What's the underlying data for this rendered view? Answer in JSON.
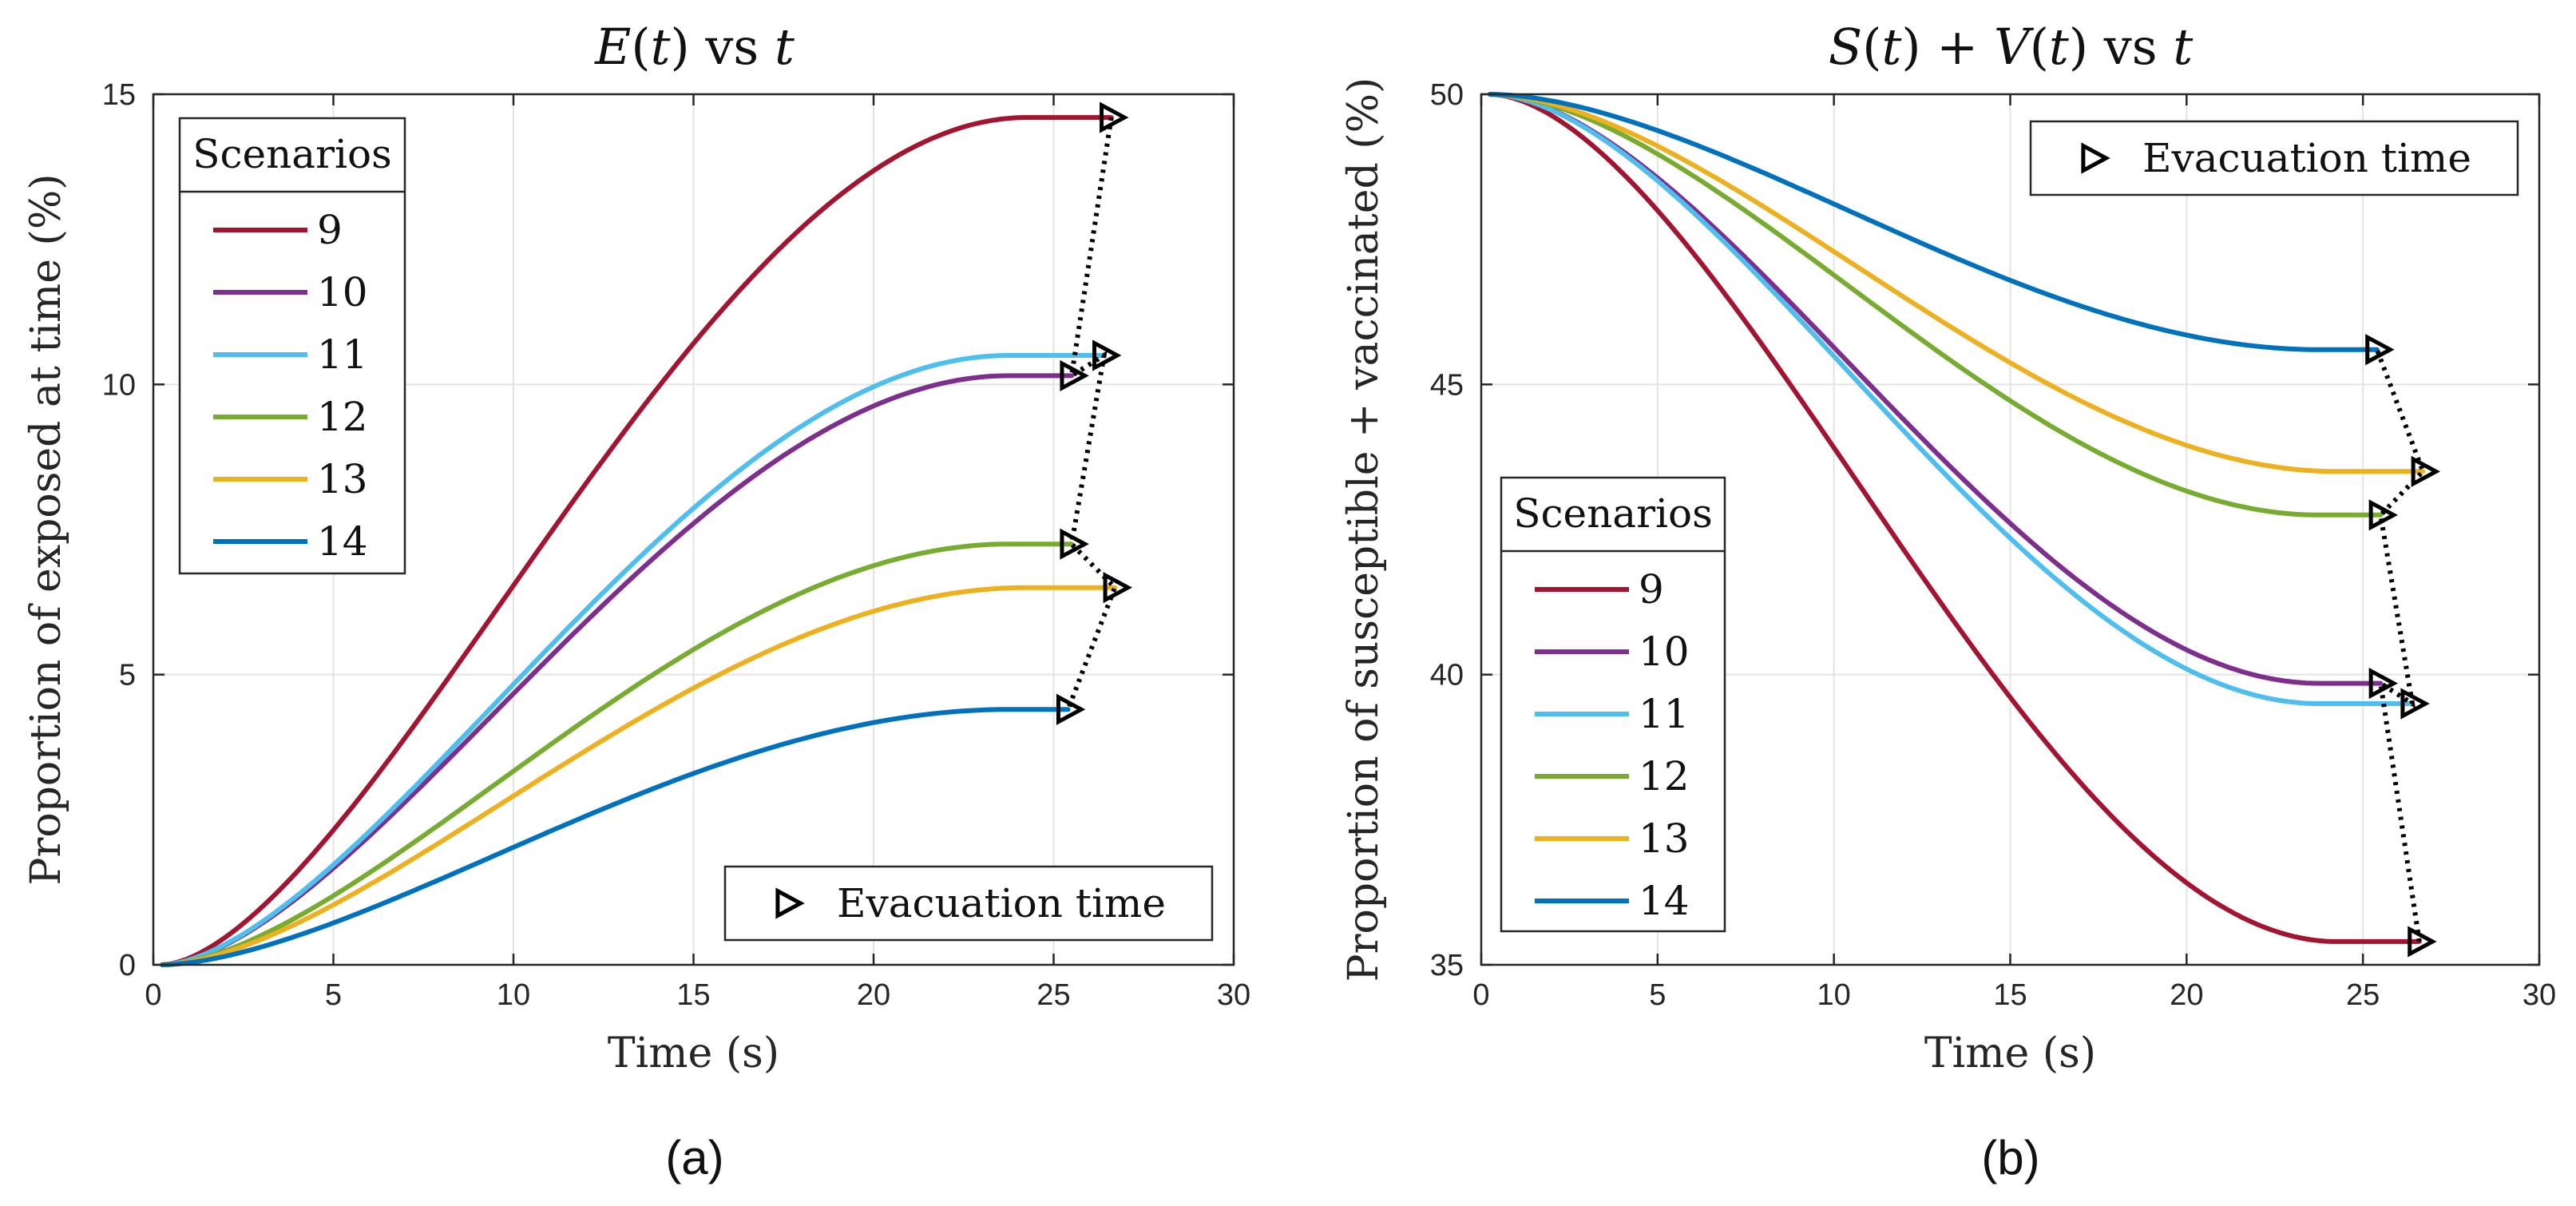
{
  "chart_data": [
    {
      "type": "line",
      "panel_label": "(a)",
      "title": "E(t) vs t",
      "title_parts": {
        "func": "E",
        "arg": "t",
        "vs": "vs",
        "var": "t"
      },
      "xlabel": "Time (s)",
      "ylabel": "Proportion of exposed at time (%)",
      "xlim": [
        0,
        30
      ],
      "ylim": [
        0,
        15
      ],
      "xticks": [
        0,
        5,
        10,
        15,
        20,
        25,
        30
      ],
      "yticks": [
        0,
        5,
        10,
        15
      ],
      "grid": true,
      "legend_title": "Scenarios",
      "legend_position": "top-left",
      "marker_legend": {
        "label": "Evacuation time",
        "position": "bottom-right"
      },
      "curve_shape": "rise",
      "series": [
        {
          "name": "9",
          "color": "#A2142F",
          "start": 0,
          "end": 14.6,
          "end_time": 26.6,
          "plateau_time": 24.0
        },
        {
          "name": "10",
          "color": "#7E2F8E",
          "start": 0,
          "end": 10.15,
          "end_time": 25.5,
          "plateau_time": 23.5
        },
        {
          "name": "11",
          "color": "#4DBEEE",
          "start": 0,
          "end": 10.5,
          "end_time": 26.4,
          "plateau_time": 23.5
        },
        {
          "name": "12",
          "color": "#77AC30",
          "start": 0,
          "end": 7.25,
          "end_time": 25.5,
          "plateau_time": 23.5
        },
        {
          "name": "13",
          "color": "#EDB120",
          "start": 0,
          "end": 6.5,
          "end_time": 26.7,
          "plateau_time": 24.0
        },
        {
          "name": "14",
          "color": "#0072BD",
          "start": 0,
          "end": 4.4,
          "end_time": 25.4,
          "plateau_time": 23.5
        }
      ]
    },
    {
      "type": "line",
      "panel_label": "(b)",
      "title": "S(t) + V(t) vs t",
      "title_parts": {
        "f1": "S",
        "f2": "V",
        "arg": "t",
        "plus": "+",
        "vs": "vs",
        "var": "t"
      },
      "xlabel": "Time (s)",
      "ylabel": "Proportion of susceptible + vaccinated (%)",
      "xlim": [
        0,
        30
      ],
      "ylim": [
        35,
        50
      ],
      "xticks": [
        0,
        5,
        10,
        15,
        20,
        25,
        30
      ],
      "yticks": [
        35,
        40,
        45,
        50
      ],
      "grid": true,
      "legend_title": "Scenarios",
      "legend_position": "bottom-left",
      "marker_legend": {
        "label": "Evacuation time",
        "position": "top-right"
      },
      "curve_shape": "fall",
      "series": [
        {
          "name": "9",
          "color": "#A2142F",
          "start": 50,
          "end": 35.4,
          "end_time": 26.6,
          "plateau_time": 24.0
        },
        {
          "name": "10",
          "color": "#7E2F8E",
          "start": 50,
          "end": 39.85,
          "end_time": 25.5,
          "plateau_time": 23.5
        },
        {
          "name": "11",
          "color": "#4DBEEE",
          "start": 50,
          "end": 39.5,
          "end_time": 26.4,
          "plateau_time": 23.5
        },
        {
          "name": "12",
          "color": "#77AC30",
          "start": 50,
          "end": 42.75,
          "end_time": 25.5,
          "plateau_time": 23.5
        },
        {
          "name": "13",
          "color": "#EDB120",
          "start": 50,
          "end": 43.5,
          "end_time": 26.7,
          "plateau_time": 24.0
        },
        {
          "name": "14",
          "color": "#0072BD",
          "start": 50,
          "end": 45.6,
          "end_time": 25.4,
          "plateau_time": 23.5
        }
      ]
    }
  ]
}
